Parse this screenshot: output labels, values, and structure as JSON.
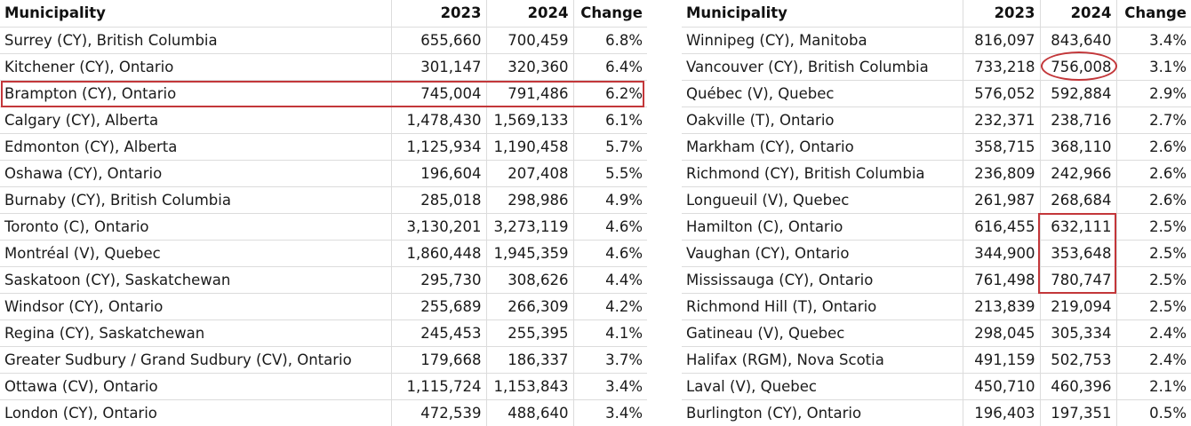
{
  "headers": {
    "municipality": "Municipality",
    "y2023": "2023",
    "y2024": "2024",
    "change": "Change"
  },
  "left_rows": [
    {
      "name": "Surrey (CY), British Columbia",
      "y2023": "655,660",
      "y2024": "700,459",
      "change": "6.8%"
    },
    {
      "name": "Kitchener (CY), Ontario",
      "y2023": "301,147",
      "y2024": "320,360",
      "change": "6.4%"
    },
    {
      "name": "Brampton (CY), Ontario",
      "y2023": "745,004",
      "y2024": "791,486",
      "change": "6.2%"
    },
    {
      "name": "Calgary (CY), Alberta",
      "y2023": "1,478,430",
      "y2024": "1,569,133",
      "change": "6.1%"
    },
    {
      "name": "Edmonton (CY), Alberta",
      "y2023": "1,125,934",
      "y2024": "1,190,458",
      "change": "5.7%"
    },
    {
      "name": "Oshawa (CY), Ontario",
      "y2023": "196,604",
      "y2024": "207,408",
      "change": "5.5%"
    },
    {
      "name": "Burnaby (CY), British Columbia",
      "y2023": "285,018",
      "y2024": "298,986",
      "change": "4.9%"
    },
    {
      "name": "Toronto (C), Ontario",
      "y2023": "3,130,201",
      "y2024": "3,273,119",
      "change": "4.6%"
    },
    {
      "name": "Montréal (V), Quebec",
      "y2023": "1,860,448",
      "y2024": "1,945,359",
      "change": "4.6%"
    },
    {
      "name": "Saskatoon (CY), Saskatchewan",
      "y2023": "295,730",
      "y2024": "308,626",
      "change": "4.4%"
    },
    {
      "name": "Windsor (CY), Ontario",
      "y2023": "255,689",
      "y2024": "266,309",
      "change": "4.2%"
    },
    {
      "name": "Regina (CY), Saskatchewan",
      "y2023": "245,453",
      "y2024": "255,395",
      "change": "4.1%"
    },
    {
      "name": "Greater Sudbury / Grand Sudbury (CV), Ontario",
      "y2023": "179,668",
      "y2024": "186,337",
      "change": "3.7%"
    },
    {
      "name": "Ottawa (CV), Ontario",
      "y2023": "1,115,724",
      "y2024": "1,153,843",
      "change": "3.4%"
    },
    {
      "name": "London (CY), Ontario",
      "y2023": "472,539",
      "y2024": "488,640",
      "change": "3.4%"
    }
  ],
  "right_rows": [
    {
      "name": "Winnipeg (CY), Manitoba",
      "y2023": "816,097",
      "y2024": "843,640",
      "change": "3.4%"
    },
    {
      "name": "Vancouver (CY), British Columbia",
      "y2023": "733,218",
      "y2024": "756,008",
      "change": "3.1%"
    },
    {
      "name": "Québec (V), Quebec",
      "y2023": "576,052",
      "y2024": "592,884",
      "change": "2.9%"
    },
    {
      "name": "Oakville (T), Ontario",
      "y2023": "232,371",
      "y2024": "238,716",
      "change": "2.7%"
    },
    {
      "name": "Markham (CY), Ontario",
      "y2023": "358,715",
      "y2024": "368,110",
      "change": "2.6%"
    },
    {
      "name": "Richmond (CY), British Columbia",
      "y2023": "236,809",
      "y2024": "242,966",
      "change": "2.6%"
    },
    {
      "name": "Longueuil (V), Quebec",
      "y2023": "261,987",
      "y2024": "268,684",
      "change": "2.6%"
    },
    {
      "name": "Hamilton (C), Ontario",
      "y2023": "616,455",
      "y2024": "632,111",
      "change": "2.5%"
    },
    {
      "name": "Vaughan (CY), Ontario",
      "y2023": "344,900",
      "y2024": "353,648",
      "change": "2.5%"
    },
    {
      "name": "Mississauga (CY), Ontario",
      "y2023": "761,498",
      "y2024": "780,747",
      "change": "2.5%"
    },
    {
      "name": "Richmond Hill (T), Ontario",
      "y2023": "213,839",
      "y2024": "219,094",
      "change": "2.5%"
    },
    {
      "name": "Gatineau (V), Quebec",
      "y2023": "298,045",
      "y2024": "305,334",
      "change": "2.4%"
    },
    {
      "name": "Halifax (RGM), Nova Scotia",
      "y2023": "491,159",
      "y2024": "502,753",
      "change": "2.4%"
    },
    {
      "name": "Laval (V), Quebec",
      "y2023": "450,710",
      "y2024": "460,396",
      "change": "2.1%"
    },
    {
      "name": "Burlington (CY), Ontario",
      "y2023": "196,403",
      "y2024": "197,351",
      "change": "0.5%"
    }
  ],
  "highlight_color": "#c3373a"
}
